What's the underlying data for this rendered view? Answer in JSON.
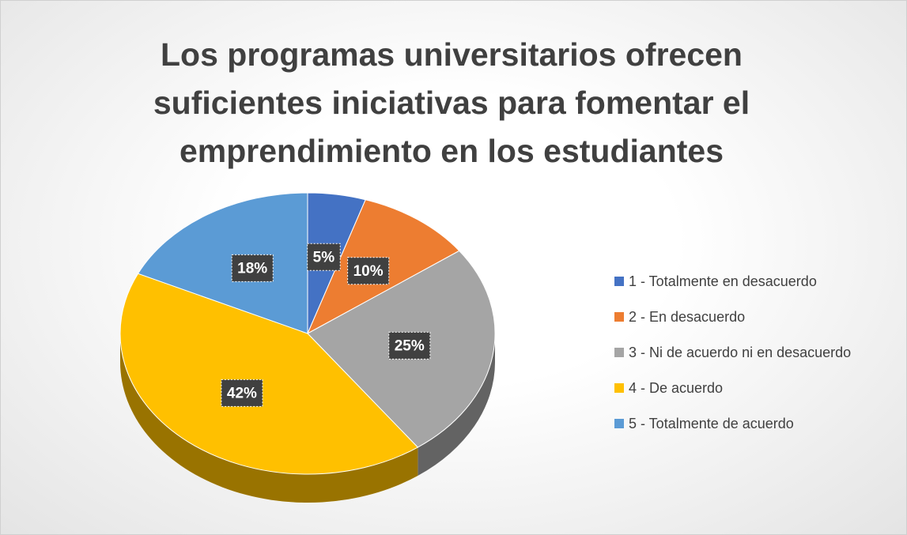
{
  "chart_data": {
    "type": "pie",
    "title": "Los programas universitarios ofrecen suficientes iniciativas para fomentar el emprendimiento en los estudiantes",
    "categories": [
      "1 - Totalmente en desacuerdo",
      "2 - En desacuerdo",
      "3 - Ni de acuerdo ni en desacuerdo",
      "4 - De acuerdo",
      "5 - Totalmente de acuerdo"
    ],
    "values": [
      5,
      10,
      25,
      42,
      18
    ],
    "value_labels": [
      "5%",
      "10%",
      "25%",
      "42%",
      "18%"
    ],
    "colors": [
      "#4472c4",
      "#ed7d31",
      "#a5a5a5",
      "#ffc000",
      "#5b9bd5"
    ],
    "legend": "right"
  }
}
